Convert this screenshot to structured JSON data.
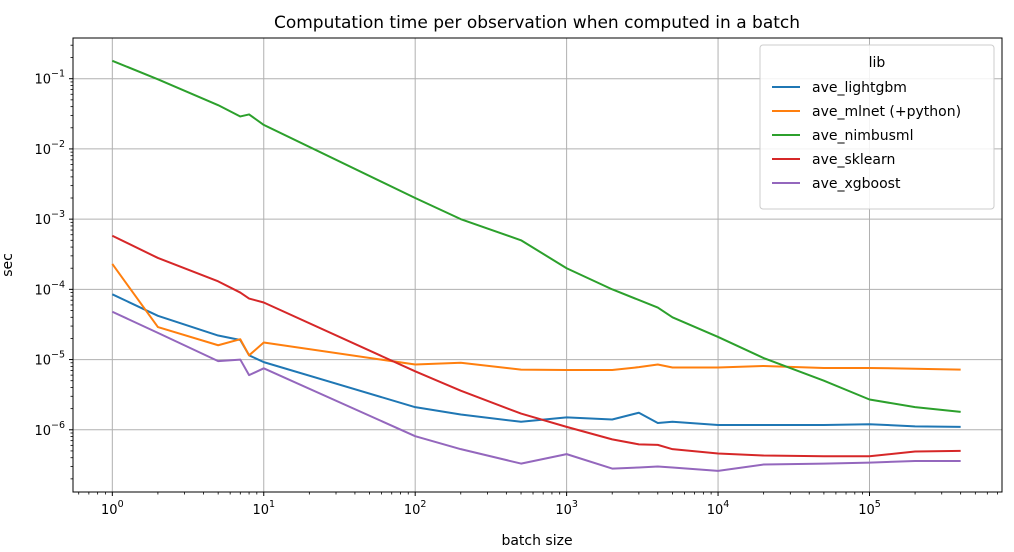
{
  "chart_data": {
    "type": "line",
    "title": "Computation time per observation when computed in a batch",
    "xlabel": "batch size",
    "ylabel": "sec",
    "xscale": "log",
    "yscale": "log",
    "xlim": [
      0.55,
      750000
    ],
    "ylim": [
      1.3e-07,
      0.38
    ],
    "grid": true,
    "legend": {
      "title": "lib",
      "placement": "top-right"
    },
    "xticks": [
      {
        "value": 1,
        "base": "10",
        "exp": "0"
      },
      {
        "value": 10,
        "base": "10",
        "exp": "1"
      },
      {
        "value": 100,
        "base": "10",
        "exp": "2"
      },
      {
        "value": 1000,
        "base": "10",
        "exp": "3"
      },
      {
        "value": 10000,
        "base": "10",
        "exp": "4"
      },
      {
        "value": 100000,
        "base": "10",
        "exp": "5"
      }
    ],
    "yticks": [
      {
        "value": 1e-06,
        "base": "10",
        "exp": "−6"
      },
      {
        "value": 1e-05,
        "base": "10",
        "exp": "−5"
      },
      {
        "value": 0.0001,
        "base": "10",
        "exp": "−4"
      },
      {
        "value": 0.001,
        "base": "10",
        "exp": "−3"
      },
      {
        "value": 0.01,
        "base": "10",
        "exp": "−2"
      },
      {
        "value": 0.1,
        "base": "10",
        "exp": "−1"
      }
    ],
    "series": [
      {
        "name": "ave_lightgbm",
        "color": "#1f77b4",
        "x": [
          1,
          2,
          5,
          7,
          8,
          10,
          100,
          200,
          500,
          1000,
          2000,
          3000,
          4000,
          5000,
          10000,
          20000,
          50000,
          100000,
          200000,
          400000
        ],
        "y": [
          8.5e-05,
          4.2e-05,
          2.2e-05,
          1.9e-05,
          1.15e-05,
          9.2e-06,
          2.1e-06,
          1.65e-06,
          1.3e-06,
          1.5e-06,
          1.4e-06,
          1.75e-06,
          1.25e-06,
          1.3e-06,
          1.17e-06,
          1.17e-06,
          1.17e-06,
          1.2e-06,
          1.12e-06,
          1.1e-06
        ]
      },
      {
        "name": "ave_mlnet (+python)",
        "color": "#ff7f0e",
        "x": [
          1,
          2,
          5,
          7,
          8,
          10,
          100,
          200,
          500,
          1000,
          2000,
          3000,
          4000,
          5000,
          10000,
          20000,
          50000,
          100000,
          200000,
          400000
        ],
        "y": [
          0.00023,
          2.9e-05,
          1.6e-05,
          1.95e-05,
          1.15e-05,
          1.75e-05,
          8.5e-06,
          9e-06,
          7.2e-06,
          7.1e-06,
          7.1e-06,
          7.8e-06,
          8.5e-06,
          7.7e-06,
          7.7e-06,
          8.1e-06,
          7.6e-06,
          7.6e-06,
          7.4e-06,
          7.2e-06
        ]
      },
      {
        "name": "ave_nimbusml",
        "color": "#2ca02c",
        "x": [
          1,
          2,
          5,
          7,
          8,
          10,
          100,
          200,
          500,
          1000,
          2000,
          4000,
          5000,
          10000,
          20000,
          50000,
          100000,
          200000,
          400000
        ],
        "y": [
          0.18,
          0.098,
          0.042,
          0.029,
          0.031,
          0.022,
          0.002,
          0.001,
          0.0005,
          0.0002,
          0.0001,
          5.5e-05,
          4e-05,
          2.1e-05,
          1.05e-05,
          5e-06,
          2.7e-06,
          2.1e-06,
          1.8e-06
        ]
      },
      {
        "name": "ave_sklearn",
        "color": "#d62728",
        "x": [
          1,
          2,
          5,
          7,
          8,
          10,
          100,
          200,
          500,
          1000,
          2000,
          3000,
          4000,
          5000,
          10000,
          20000,
          50000,
          100000,
          200000,
          400000
        ],
        "y": [
          0.00058,
          0.00028,
          0.00013,
          9e-05,
          7.4e-05,
          6.5e-05,
          6.8e-06,
          3.6e-06,
          1.7e-06,
          1.1e-06,
          7.3e-07,
          6.2e-07,
          6.1e-07,
          5.3e-07,
          4.6e-07,
          4.3e-07,
          4.2e-07,
          4.2e-07,
          4.9e-07,
          5e-07
        ]
      },
      {
        "name": "ave_xgboost",
        "color": "#9467bd",
        "x": [
          1,
          2,
          5,
          7,
          8,
          10,
          100,
          200,
          500,
          1000,
          2000,
          3000,
          4000,
          5000,
          10000,
          20000,
          50000,
          100000,
          200000,
          400000
        ],
        "y": [
          4.8e-05,
          2.4e-05,
          9.5e-06,
          1e-05,
          6e-06,
          7.5e-06,
          8.1e-07,
          5.3e-07,
          3.3e-07,
          4.5e-07,
          2.8e-07,
          2.9e-07,
          3e-07,
          2.9e-07,
          2.6e-07,
          3.2e-07,
          3.3e-07,
          3.4e-07,
          3.6e-07,
          3.6e-07
        ]
      }
    ]
  }
}
